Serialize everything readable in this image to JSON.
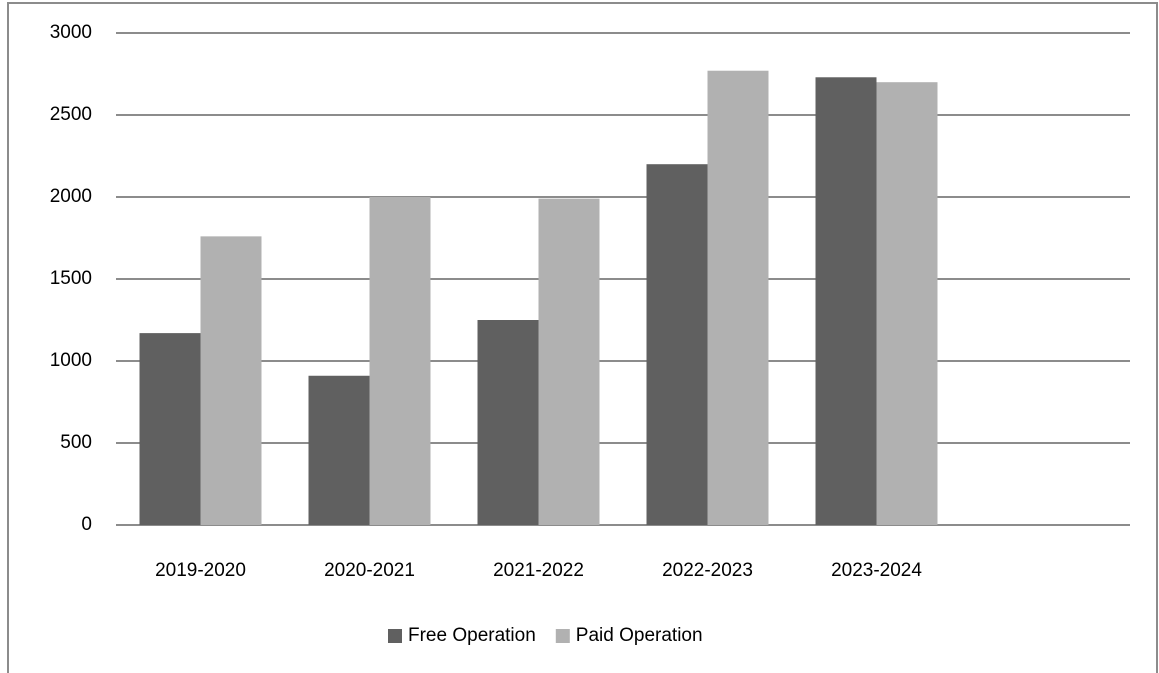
{
  "chart_data": {
    "type": "bar",
    "categories": [
      "2019-2020",
      "2020-2021",
      "2021-2022",
      "2022-2023",
      "2023-2024",
      null
    ],
    "series": [
      {
        "name": "Free Operation",
        "color": "#606060",
        "values": [
          1170,
          910,
          1250,
          2200,
          2730,
          null
        ]
      },
      {
        "name": "Paid Operation",
        "color": "#b1b1b1",
        "values": [
          1760,
          2000,
          1990,
          2770,
          2700,
          null
        ]
      }
    ],
    "ylim": [
      0,
      3000
    ],
    "yticks": [
      0,
      500,
      1000,
      1500,
      2000,
      2500,
      3000
    ],
    "grid": true,
    "legend": "bottom"
  }
}
